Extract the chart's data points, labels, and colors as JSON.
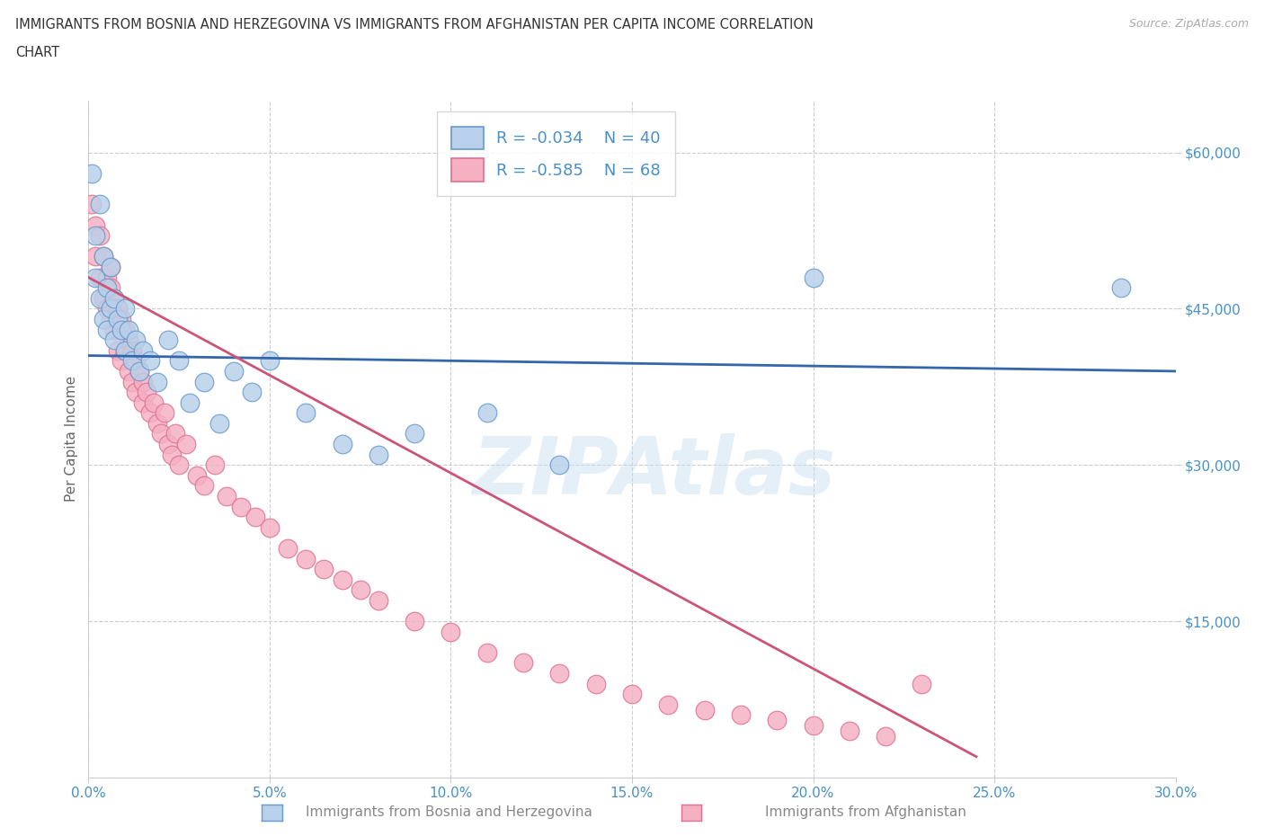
{
  "title_line1": "IMMIGRANTS FROM BOSNIA AND HERZEGOVINA VS IMMIGRANTS FROM AFGHANISTAN PER CAPITA INCOME CORRELATION",
  "title_line2": "CHART",
  "source": "Source: ZipAtlas.com",
  "xlabel_bosnia": "Immigrants from Bosnia and Herzegovina",
  "xlabel_afghanistan": "Immigrants from Afghanistan",
  "ylabel": "Per Capita Income",
  "R_bosnia": -0.034,
  "N_bosnia": 40,
  "R_afghanistan": -0.585,
  "N_afghanistan": 68,
  "bosnia_fill": "#b8d0ea",
  "afghanistan_fill": "#f5b0c2",
  "bosnia_edge": "#6699cc",
  "afghanistan_edge": "#e07090",
  "bosnia_line": "#3366aa",
  "afghanistan_line": "#cc5577",
  "xlim": [
    0.0,
    0.3
  ],
  "ylim": [
    0,
    65000
  ],
  "yticks": [
    15000,
    30000,
    45000,
    60000
  ],
  "xticks": [
    0.0,
    0.05,
    0.1,
    0.15,
    0.2,
    0.25,
    0.3
  ],
  "watermark": "ZIPAtlas",
  "bg": "#ffffff",
  "tick_color": "#4a90c4",
  "title_color": "#333333",
  "grid_color": "#cccccc",
  "label_color": "#888888",
  "bosnia_pts_x": [
    0.001,
    0.002,
    0.002,
    0.003,
    0.003,
    0.004,
    0.004,
    0.005,
    0.005,
    0.006,
    0.006,
    0.007,
    0.007,
    0.008,
    0.009,
    0.01,
    0.01,
    0.011,
    0.012,
    0.013,
    0.014,
    0.015,
    0.017,
    0.019,
    0.022,
    0.025,
    0.028,
    0.032,
    0.036,
    0.04,
    0.045,
    0.05,
    0.06,
    0.07,
    0.08,
    0.09,
    0.11,
    0.13,
    0.2,
    0.285
  ],
  "bosnia_pts_y": [
    58000,
    52000,
    48000,
    55000,
    46000,
    50000,
    44000,
    47000,
    43000,
    49000,
    45000,
    46000,
    42000,
    44000,
    43000,
    41000,
    45000,
    43000,
    40000,
    42000,
    39000,
    41000,
    40000,
    38000,
    42000,
    40000,
    36000,
    38000,
    34000,
    39000,
    37000,
    40000,
    35000,
    32000,
    31000,
    33000,
    35000,
    30000,
    48000,
    47000
  ],
  "afghan_pts_x": [
    0.001,
    0.002,
    0.002,
    0.003,
    0.003,
    0.004,
    0.004,
    0.005,
    0.005,
    0.006,
    0.006,
    0.006,
    0.007,
    0.007,
    0.008,
    0.008,
    0.009,
    0.009,
    0.01,
    0.01,
    0.011,
    0.011,
    0.012,
    0.012,
    0.013,
    0.013,
    0.014,
    0.015,
    0.015,
    0.016,
    0.017,
    0.018,
    0.019,
    0.02,
    0.021,
    0.022,
    0.023,
    0.024,
    0.025,
    0.027,
    0.03,
    0.032,
    0.035,
    0.038,
    0.042,
    0.046,
    0.05,
    0.055,
    0.06,
    0.065,
    0.07,
    0.075,
    0.08,
    0.09,
    0.1,
    0.11,
    0.12,
    0.13,
    0.14,
    0.15,
    0.16,
    0.17,
    0.18,
    0.19,
    0.2,
    0.21,
    0.22,
    0.23
  ],
  "afghan_pts_y": [
    55000,
    53000,
    50000,
    52000,
    48000,
    50000,
    46000,
    48000,
    45000,
    47000,
    44000,
    49000,
    46000,
    43000,
    45000,
    41000,
    44000,
    40000,
    43000,
    41000,
    42000,
    39000,
    41000,
    38000,
    40000,
    37000,
    39000,
    38000,
    36000,
    37000,
    35000,
    36000,
    34000,
    33000,
    35000,
    32000,
    31000,
    33000,
    30000,
    32000,
    29000,
    28000,
    30000,
    27000,
    26000,
    25000,
    24000,
    22000,
    21000,
    20000,
    19000,
    18000,
    17000,
    15000,
    14000,
    12000,
    11000,
    10000,
    9000,
    8000,
    7000,
    6500,
    6000,
    5500,
    5000,
    4500,
    4000,
    9000
  ],
  "bosnia_trend_x": [
    0.0,
    0.3
  ],
  "bosnia_trend_y": [
    40500,
    39000
  ],
  "afghan_trend_x": [
    0.0,
    0.245
  ],
  "afghan_trend_y": [
    48000,
    2000
  ]
}
